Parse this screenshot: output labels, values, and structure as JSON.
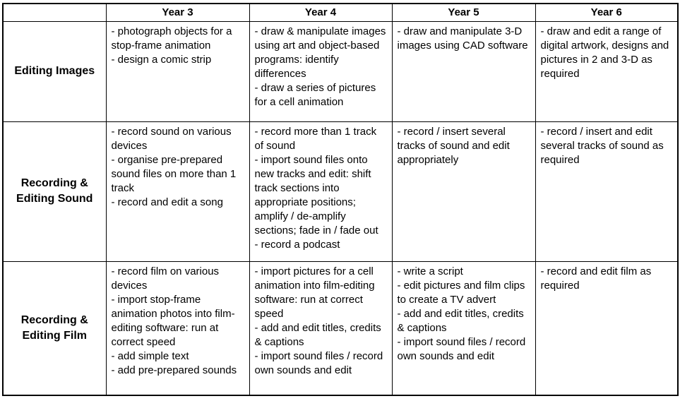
{
  "colors": {
    "header_bg": "#C33C19",
    "header_text": "#FFFFFF",
    "border": "#000000",
    "body_text": "#000000",
    "page_bg": "#FFFFFF"
  },
  "table": {
    "bullet_prefix": "- ",
    "columns": [
      "",
      "Year 3",
      "Year 4",
      "Year 5",
      "Year 6"
    ],
    "rows": [
      {
        "label": "Editing Images",
        "cells": [
          [
            "photograph objects for a stop-frame animation",
            "design a comic strip"
          ],
          [
            "draw & manipulate images using art and object-based programs: identify differences",
            "draw a series of pictures for a cell animation"
          ],
          [
            "draw and manipulate 3-D images using CAD software"
          ],
          [
            "draw and edit a range of digital artwork, designs and pictures in 2 and 3-D as required"
          ]
        ]
      },
      {
        "label": "Recording & Editing Sound",
        "cells": [
          [
            "record sound on various devices",
            "organise pre-prepared sound files on more than 1 track",
            "record and edit a song"
          ],
          [
            "record more than 1 track of sound",
            "import sound files onto new tracks and edit: shift track sections into appropriate positions; amplify / de-amplify sections; fade in / fade out",
            "record a podcast"
          ],
          [
            "record / insert several tracks of sound and edit appropriately"
          ],
          [
            "record / insert and edit several tracks of sound as required"
          ]
        ]
      },
      {
        "label": "Recording & Editing Film",
        "cells": [
          [
            "record film on various devices",
            "import stop-frame animation photos into film-editing software: run at correct speed",
            "add simple text",
            "add pre-prepared sounds"
          ],
          [
            "import pictures for a cell animation into film-editing software: run at correct speed",
            "add and edit titles, credits & captions",
            "import sound files / record own sounds and edit"
          ],
          [
            "write a script",
            "edit pictures and film clips to create a TV advert",
            "add and edit titles, credits & captions",
            "import sound files / record own sounds and edit"
          ],
          [
            "record and edit film as required"
          ]
        ]
      }
    ]
  }
}
